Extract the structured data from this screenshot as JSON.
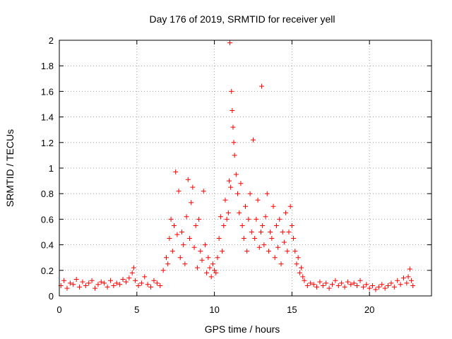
{
  "chart_data": {
    "type": "scatter",
    "title": "Day 176 of 2019, SRMTID for receiver yell",
    "xlabel": "GPS time / hours",
    "ylabel": "SRMTID / TECUs",
    "xlim": [
      0,
      24
    ],
    "ylim": [
      0,
      2
    ],
    "xticks": [
      0,
      5,
      10,
      15,
      20
    ],
    "yticks": [
      0,
      0.2,
      0.4,
      0.6,
      0.8,
      1,
      1.2,
      1.4,
      1.6,
      1.8,
      2
    ],
    "xtick_labels": [
      "0",
      "5",
      "10",
      "15",
      "20"
    ],
    "ytick_labels": [
      "0",
      "0.2",
      "0.4",
      "0.6",
      "0.8",
      "1",
      "1.2",
      "1.4",
      "1.6",
      "1.8",
      "2"
    ],
    "grid": true,
    "marker": "+",
    "color": "#ff0000",
    "series": [
      {
        "name": "SRMTID",
        "x": [
          0.1,
          0.3,
          0.5,
          0.7,
          0.9,
          1.1,
          1.3,
          1.5,
          1.7,
          1.9,
          2.1,
          2.3,
          2.5,
          2.7,
          2.9,
          3.1,
          3.3,
          3.5,
          3.7,
          3.9,
          4.1,
          4.3,
          4.5,
          4.7,
          4.8,
          4.9,
          5.1,
          5.3,
          5.5,
          5.7,
          5.9,
          6.1,
          6.3,
          6.5,
          6.7,
          6.9,
          7.0,
          7.1,
          7.2,
          7.3,
          7.4,
          7.5,
          7.6,
          7.7,
          7.8,
          7.9,
          8.0,
          8.1,
          8.2,
          8.3,
          8.4,
          8.5,
          8.6,
          8.7,
          8.8,
          8.9,
          9.0,
          9.1,
          9.2,
          9.3,
          9.4,
          9.5,
          9.6,
          9.7,
          9.8,
          9.9,
          10.0,
          10.1,
          10.2,
          10.3,
          10.4,
          10.5,
          10.6,
          10.7,
          10.8,
          10.9,
          10.95,
          11.0,
          11.05,
          11.1,
          11.15,
          11.2,
          11.25,
          11.3,
          11.4,
          11.5,
          11.6,
          11.7,
          11.8,
          11.9,
          12.0,
          12.1,
          12.2,
          12.3,
          12.4,
          12.5,
          12.6,
          12.7,
          12.8,
          12.9,
          13.0,
          13.05,
          13.1,
          13.2,
          13.3,
          13.4,
          13.5,
          13.6,
          13.7,
          13.8,
          13.9,
          14.0,
          14.1,
          14.2,
          14.3,
          14.4,
          14.5,
          14.6,
          14.7,
          14.8,
          14.9,
          15.0,
          15.1,
          15.2,
          15.3,
          15.4,
          15.5,
          15.6,
          15.7,
          15.8,
          16.0,
          16.2,
          16.4,
          16.6,
          16.8,
          17.0,
          17.2,
          17.4,
          17.6,
          17.8,
          18.0,
          18.2,
          18.4,
          18.6,
          18.8,
          19.0,
          19.2,
          19.4,
          19.6,
          19.8,
          20.0,
          20.2,
          20.4,
          20.6,
          20.8,
          21.0,
          21.2,
          21.4,
          21.6,
          21.8,
          22.0,
          22.2,
          22.4,
          22.5,
          22.6,
          22.7,
          22.8
        ],
        "y": [
          0.08,
          0.12,
          0.06,
          0.1,
          0.09,
          0.13,
          0.07,
          0.11,
          0.08,
          0.1,
          0.12,
          0.06,
          0.09,
          0.11,
          0.1,
          0.07,
          0.12,
          0.08,
          0.1,
          0.09,
          0.13,
          0.11,
          0.14,
          0.18,
          0.22,
          0.12,
          0.08,
          0.1,
          0.15,
          0.09,
          0.07,
          0.12,
          0.1,
          0.08,
          0.2,
          0.3,
          0.25,
          0.45,
          0.6,
          0.35,
          0.55,
          0.97,
          0.48,
          0.82,
          0.3,
          0.5,
          0.4,
          0.25,
          0.62,
          0.91,
          0.45,
          0.73,
          0.85,
          0.38,
          0.55,
          0.22,
          0.6,
          0.35,
          0.28,
          0.82,
          0.4,
          0.18,
          0.3,
          0.22,
          0.15,
          0.25,
          0.2,
          0.18,
          0.3,
          0.45,
          0.62,
          0.35,
          0.55,
          0.75,
          0.6,
          0.65,
          0.9,
          1.98,
          0.85,
          1.6,
          1.45,
          1.32,
          1.2,
          1.1,
          0.95,
          0.8,
          0.65,
          0.88,
          0.55,
          0.45,
          0.7,
          0.35,
          0.6,
          0.8,
          0.5,
          1.22,
          0.45,
          0.6,
          0.75,
          0.38,
          0.5,
          1.64,
          0.55,
          0.4,
          0.62,
          0.8,
          0.35,
          0.5,
          0.45,
          0.7,
          0.3,
          0.55,
          0.38,
          0.6,
          0.25,
          0.5,
          0.42,
          0.65,
          0.35,
          0.5,
          0.7,
          0.55,
          0.45,
          0.35,
          0.25,
          0.3,
          0.18,
          0.22,
          0.15,
          0.12,
          0.08,
          0.1,
          0.09,
          0.07,
          0.11,
          0.08,
          0.1,
          0.06,
          0.09,
          0.12,
          0.08,
          0.1,
          0.07,
          0.11,
          0.09,
          0.1,
          0.08,
          0.12,
          0.07,
          0.09,
          0.06,
          0.08,
          0.05,
          0.07,
          0.09,
          0.06,
          0.08,
          0.1,
          0.07,
          0.12,
          0.09,
          0.14,
          0.1,
          0.15,
          0.21,
          0.12,
          0.08
        ]
      }
    ]
  }
}
